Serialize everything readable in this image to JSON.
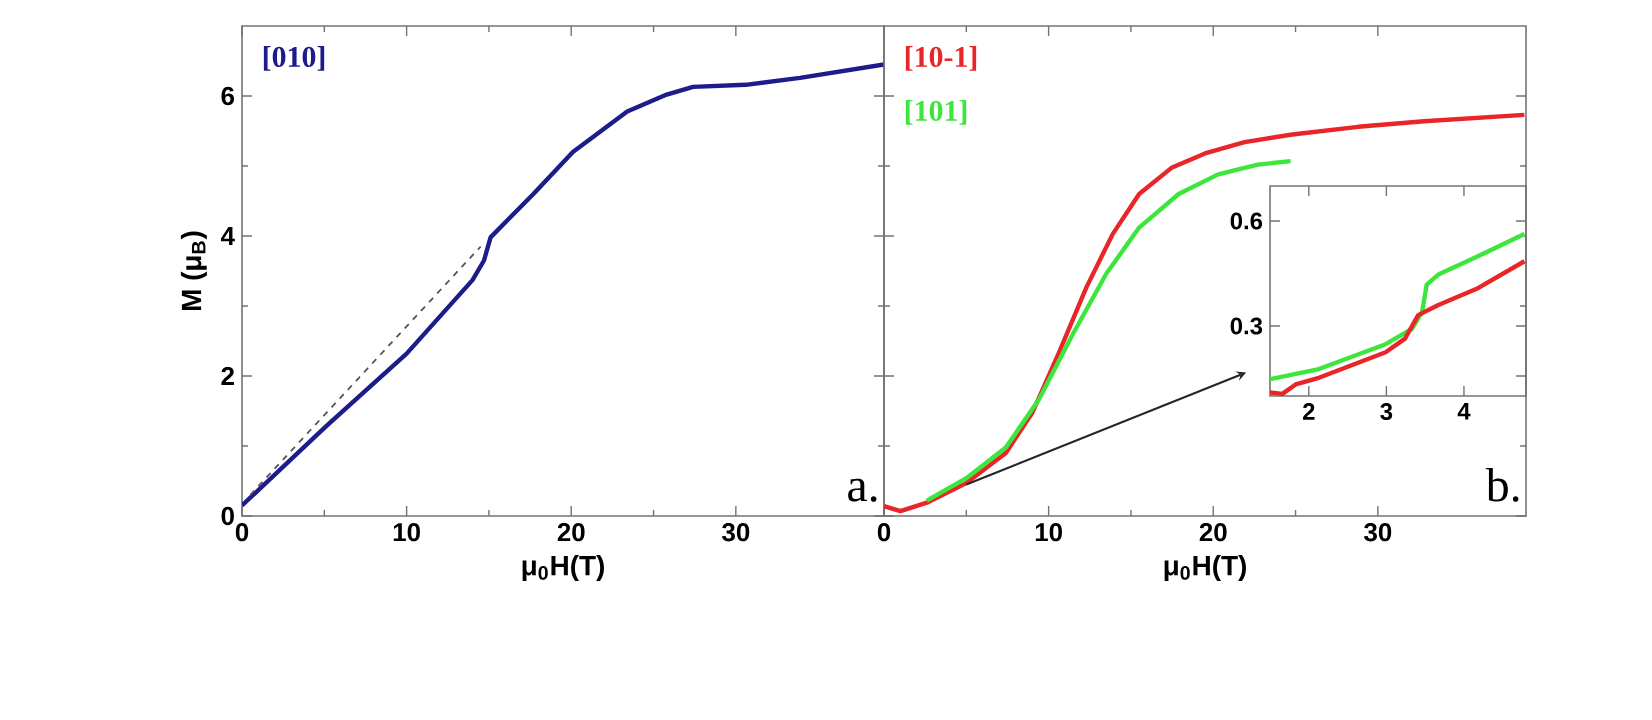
{
  "chart_data": [
    {
      "type": "line",
      "xlabel": "μ$_{0}$H(T)",
      "ylabel": "M (μ$_{B}$)",
      "xlim": [
        0,
        39
      ],
      "ylim": [
        0,
        7
      ],
      "xticks": [
        0,
        10,
        20,
        30
      ],
      "yticks": [
        0,
        2,
        4,
        6
      ],
      "marker": "none",
      "annotations": [
        "a."
      ],
      "series": [
        {
          "name": "[010]",
          "color": "#1c1c8a",
          "x": [
            0,
            5.1,
            10,
            14,
            14.7,
            15.1,
            17.7,
            20.1,
            23.4,
            25.8,
            27.4,
            30.6,
            33.9,
            39
          ],
          "values": [
            0.15,
            1.28,
            2.32,
            3.37,
            3.65,
            3.98,
            4.6,
            5.2,
            5.78,
            6.02,
            6.13,
            6.16,
            6.26,
            6.45
          ]
        },
        {
          "type": "line",
          "line_style": "dashed",
          "color": "#555555",
          "x": [
            0.5,
            14.5
          ],
          "values": [
            0.3,
            3.85
          ]
        }
      ]
    },
    {
      "type": "line",
      "xlabel": "μ$_{0}$H(T)",
      "xlim": [
        0,
        39
      ],
      "ylim": [
        0,
        7
      ],
      "xticks": [
        0,
        10,
        20,
        30
      ],
      "yticks": [
        0,
        2,
        4,
        6
      ],
      "tick_labels": "x",
      "marker": "none",
      "annotations": [
        "b."
      ],
      "series": [
        {
          "name": "[10-1]",
          "color": "#e8262a",
          "x": [
            0,
            1,
            2.6,
            5,
            7.4,
            9,
            10.6,
            12.3,
            13.9,
            15.5,
            17.5,
            19.5,
            21.9,
            24.8,
            28.8,
            32.8,
            38.9
          ],
          "values": [
            0.14,
            0.07,
            0.19,
            0.47,
            0.9,
            1.47,
            2.32,
            3.27,
            4.03,
            4.6,
            4.98,
            5.18,
            5.34,
            5.45,
            5.56,
            5.64,
            5.73
          ]
        },
        {
          "name": "[101]",
          "color": "#3de63d",
          "x": [
            2.6,
            5,
            7.4,
            9.4,
            11.5,
            13.5,
            15.5,
            17.9,
            20.3,
            22.7,
            24.7
          ],
          "values": [
            0.22,
            0.54,
            0.98,
            1.66,
            2.61,
            3.46,
            4.12,
            4.6,
            4.88,
            5.02,
            5.07
          ]
        }
      ]
    },
    {
      "type": "line",
      "xlim": [
        1.5,
        4.8
      ],
      "ylim": [
        0.1,
        0.7
      ],
      "xticks": [
        2,
        3,
        4
      ],
      "yticks": [
        0.3,
        0.6
      ],
      "marker": "none",
      "series": [
        {
          "color": "#3de63d",
          "x": [
            1.5,
            2.13,
            2.99,
            3.33,
            3.46,
            3.52,
            3.67,
            4.18,
            4.78
          ],
          "values": [
            0.148,
            0.177,
            0.248,
            0.292,
            0.34,
            0.418,
            0.447,
            0.499,
            0.563
          ]
        },
        {
          "color": "#e8262a",
          "x": [
            1.5,
            1.66,
            1.83,
            2.13,
            2.99,
            3.24,
            3.41,
            3.67,
            4.18,
            4.78
          ],
          "values": [
            0.11,
            0.106,
            0.133,
            0.152,
            0.225,
            0.264,
            0.331,
            0.36,
            0.408,
            0.485
          ]
        }
      ]
    }
  ]
}
